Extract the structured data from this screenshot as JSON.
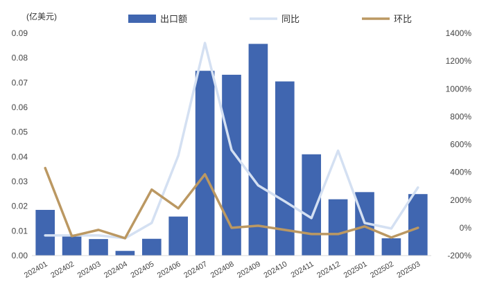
{
  "chart_data": {
    "type": "bar",
    "unit_label": "(亿美元)",
    "categories": [
      "202401",
      "202402",
      "202403",
      "202404",
      "202405",
      "202406",
      "202407",
      "202408",
      "202409",
      "202410",
      "202411",
      "202412",
      "202501",
      "202502",
      "202503"
    ],
    "series": [
      {
        "name": "出口额",
        "type": "bar",
        "axis": "left",
        "color": "#4066b0",
        "values": [
          0.0185,
          0.0078,
          0.0067,
          0.0019,
          0.0068,
          0.0158,
          0.0748,
          0.0732,
          0.0857,
          0.0705,
          0.041,
          0.0228,
          0.0257,
          0.007,
          0.0249
        ]
      },
      {
        "name": "同比",
        "type": "line",
        "axis": "right",
        "color": "#d4e0f2",
        "values": [
          -0.55,
          -0.55,
          -0.55,
          -0.75,
          0.35,
          5.2,
          13.3,
          5.6,
          3.05,
          1.9,
          0.7,
          5.55,
          0.35,
          -0.05,
          2.9
        ]
      },
      {
        "name": "环比",
        "type": "line",
        "axis": "right",
        "color": "#bb9862",
        "values": [
          4.3,
          -0.6,
          -0.15,
          -0.75,
          2.75,
          1.4,
          3.85,
          0.0,
          0.15,
          -0.15,
          -0.45,
          -0.45,
          0.1,
          -0.7,
          0.0
        ]
      }
    ],
    "y_left": {
      "min": 0,
      "max": 0.09,
      "ticks": [
        "0.00",
        "0.01",
        "0.02",
        "0.03",
        "0.04",
        "0.05",
        "0.06",
        "0.07",
        "0.08",
        "0.09"
      ]
    },
    "y_right": {
      "min": -2,
      "max": 14,
      "ticks": [
        "-200%",
        "0%",
        "200%",
        "400%",
        "600%",
        "800%",
        "1000%",
        "1200%",
        "1400%"
      ]
    },
    "legend_position": "top",
    "grid": false
  }
}
